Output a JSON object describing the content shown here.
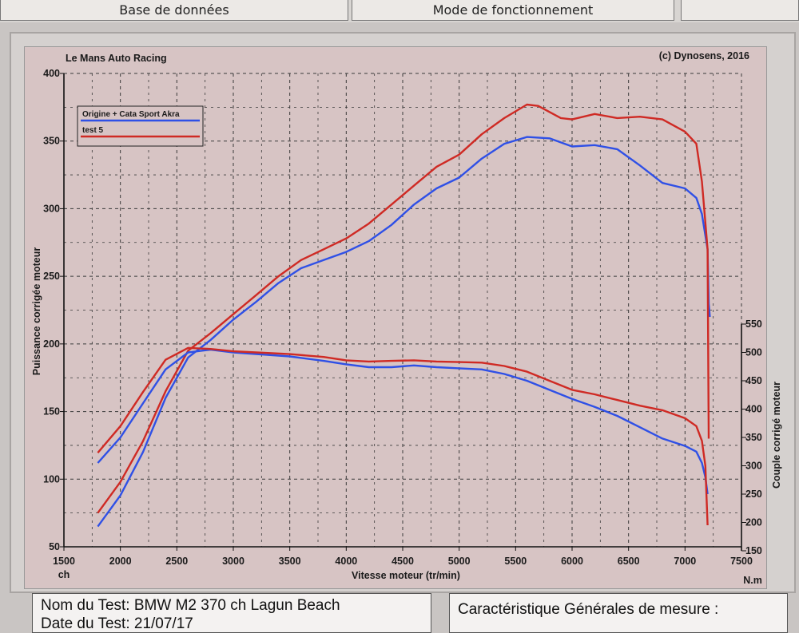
{
  "tabs": [
    "Base de données",
    "Mode de fonctionnement"
  ],
  "chart_header": {
    "left": "Le Mans Auto Racing",
    "right": "(c) Dynosens, 2016"
  },
  "info": {
    "test_name": "Nom du Test: BMW M2 370 ch Lagun Beach",
    "test_date": "Date du Test: 21/07/17",
    "general_title": "Caractéristique Générales de mesure :"
  },
  "colors": {
    "series_blue": "#2f50e6",
    "series_red": "#cf2a24",
    "grid": "#3a3a3a",
    "plot_bg": "#d7c4c4"
  },
  "chart_data": {
    "type": "line",
    "title": "",
    "xlabel": "Vitesse moteur (tr/min)",
    "x_unit_left": "ch",
    "x_unit_right": "N.m",
    "ylabel": "Puissance corrigée moteur",
    "y2label": "Couple corrigé moteur",
    "xlim": [
      1500,
      7500
    ],
    "ylim": [
      50,
      400
    ],
    "y2lim": [
      150,
      550
    ],
    "x_ticks": [
      1500,
      2000,
      2500,
      3000,
      3500,
      4000,
      4500,
      5000,
      5500,
      6000,
      6500,
      7000,
      7500
    ],
    "y_ticks": [
      50,
      100,
      150,
      200,
      250,
      300,
      350,
      400
    ],
    "y2_ticks": [
      150,
      200,
      250,
      300,
      350,
      400,
      450,
      500,
      550
    ],
    "grid": true,
    "legend_position": "top-left",
    "legend": [
      "Origine + Cata Sport Akra",
      "test 5"
    ],
    "series": [
      {
        "name": "Origine + Cata Sport Akra",
        "quantity": "power",
        "axis": "left",
        "color": "#2f50e6",
        "x": [
          1800,
          2000,
          2200,
          2400,
          2600,
          2800,
          3000,
          3200,
          3400,
          3600,
          3800,
          4000,
          4200,
          4400,
          4600,
          4800,
          5000,
          5200,
          5400,
          5600,
          5800,
          6000,
          6200,
          6400,
          6600,
          6800,
          7000,
          7100,
          7150,
          7200,
          7210,
          7220
        ],
        "y": [
          65,
          88,
          120,
          160,
          190,
          203,
          218,
          231,
          245,
          256,
          262,
          268,
          276,
          288,
          303,
          315,
          323,
          337,
          348,
          353,
          352,
          346,
          347,
          344,
          332,
          319,
          315,
          308,
          296,
          270,
          230,
          220
        ]
      },
      {
        "name": "test 5",
        "quantity": "power",
        "axis": "left",
        "color": "#cf2a24",
        "x": [
          1800,
          2000,
          2200,
          2400,
          2600,
          2800,
          3000,
          3200,
          3400,
          3600,
          3800,
          4000,
          4200,
          4400,
          4600,
          4800,
          5000,
          5200,
          5400,
          5600,
          5700,
          5900,
          6000,
          6200,
          6400,
          6600,
          6800,
          7000,
          7100,
          7150,
          7200,
          7210
        ],
        "y": [
          75,
          98,
          128,
          165,
          195,
          208,
          222,
          236,
          250,
          262,
          270,
          278,
          289,
          303,
          317,
          331,
          340,
          355,
          367,
          377,
          376,
          367,
          366,
          370,
          367,
          368,
          366,
          357,
          348,
          320,
          270,
          130
        ]
      },
      {
        "name": "Origine + Cata Sport Akra",
        "quantity": "torque",
        "axis": "right",
        "color": "#2f50e6",
        "x": [
          1800,
          2000,
          2200,
          2400,
          2600,
          2800,
          3000,
          3200,
          3500,
          3800,
          4000,
          4200,
          4400,
          4600,
          4800,
          5000,
          5200,
          5400,
          5600,
          5800,
          6000,
          6200,
          6400,
          6600,
          6800,
          7000,
          7100,
          7150,
          7180,
          7200
        ],
        "y": [
          305,
          350,
          410,
          470,
          500,
          505,
          500,
          497,
          493,
          485,
          479,
          474,
          474,
          477,
          474,
          472,
          470,
          462,
          450,
          434,
          418,
          404,
          388,
          368,
          348,
          335,
          325,
          305,
          280,
          250
        ]
      },
      {
        "name": "test 5",
        "quantity": "torque",
        "axis": "right",
        "color": "#cf2a24",
        "x": [
          1800,
          2000,
          2200,
          2400,
          2600,
          2800,
          3000,
          3200,
          3500,
          3800,
          4000,
          4200,
          4400,
          4600,
          4800,
          5000,
          5200,
          5400,
          5600,
          5800,
          6000,
          6200,
          6400,
          6600,
          6800,
          7000,
          7100,
          7150,
          7180,
          7200
        ],
        "y": [
          323,
          370,
          430,
          487,
          508,
          506,
          502,
          500,
          497,
          492,
          486,
          484,
          485,
          486,
          484,
          483,
          482,
          476,
          466,
          450,
          434,
          426,
          416,
          406,
          398,
          384,
          370,
          344,
          300,
          195
        ]
      }
    ]
  }
}
